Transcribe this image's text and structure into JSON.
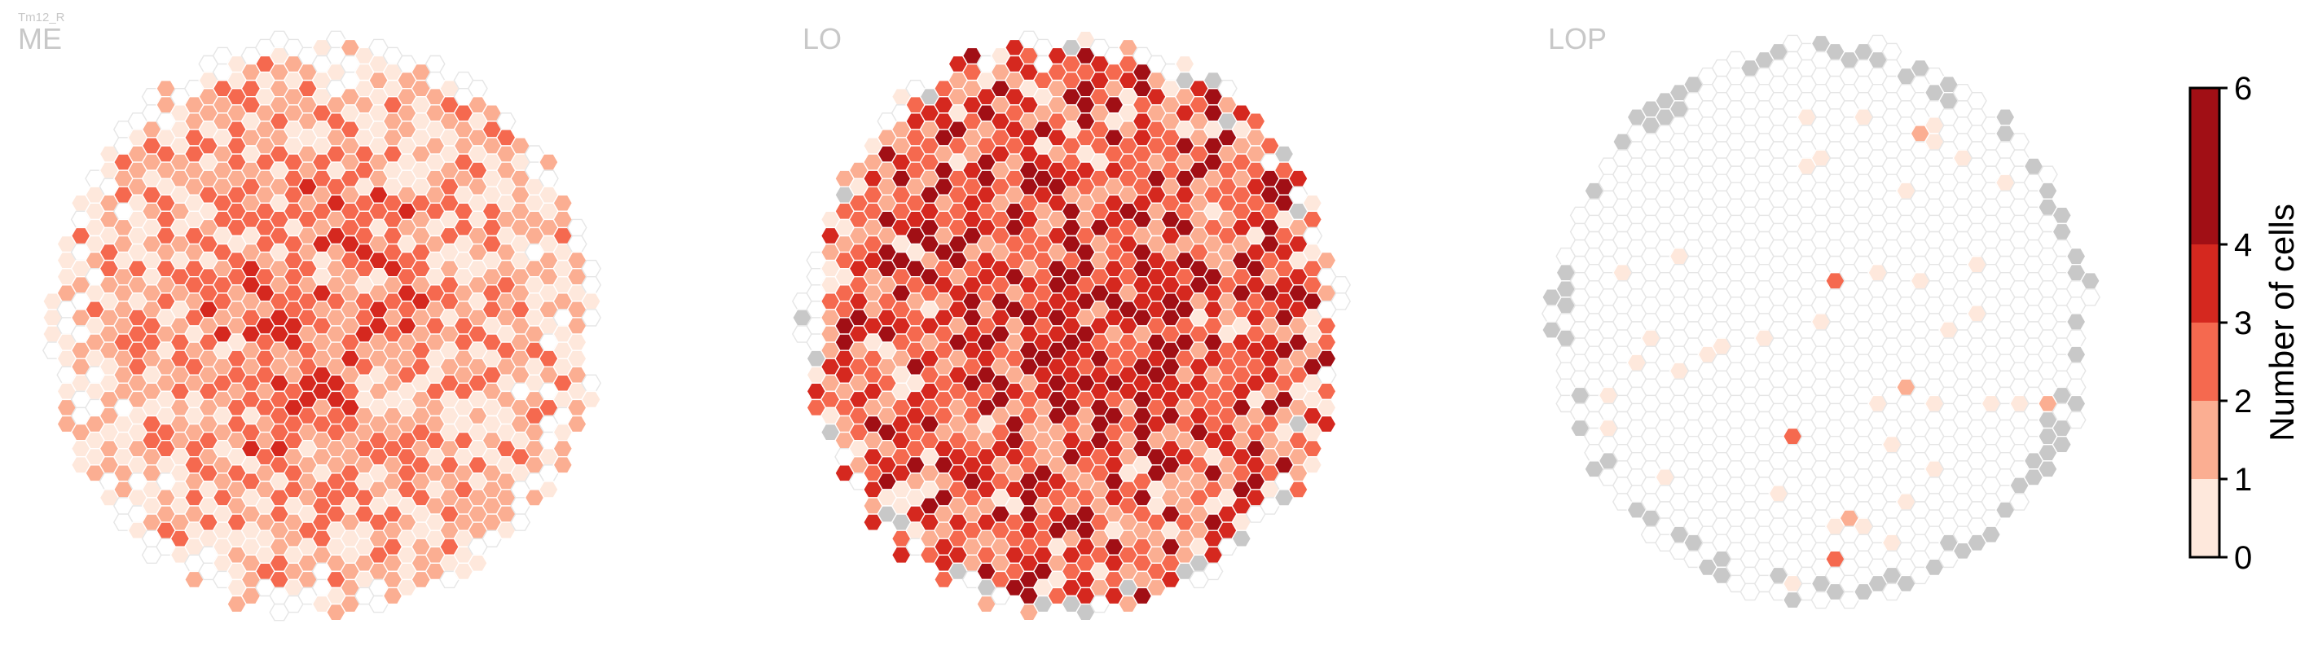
{
  "figure": {
    "cell_type": "Tm12_R",
    "panels": [
      {
        "name": "ME"
      },
      {
        "name": "LO"
      },
      {
        "name": "LOP"
      }
    ]
  },
  "chart_data": {
    "type": "heatmap",
    "description_kind": "hexagonal column map",
    "panels": [
      "ME",
      "LO",
      "LOP"
    ],
    "panel_summary": {
      "ME": {
        "occupied_columns": "most",
        "typical_count_range": [
          1,
          4
        ],
        "max_count": 6
      },
      "LO": {
        "occupied_columns": "most",
        "typical_count_range": [
          2,
          6
        ],
        "max_count": 6
      },
      "LOP": {
        "occupied_columns": "few",
        "typical_count_range": [
          0,
          1
        ],
        "max_count": 3
      }
    },
    "colorbar": {
      "label": "Number of cells",
      "ticks": [
        "0",
        "1",
        "2",
        "3",
        "4",
        "6"
      ],
      "bins": [
        {
          "range": [
            0,
            1
          ],
          "color": "#fee8dc"
        },
        {
          "range": [
            1,
            2
          ],
          "color": "#fbae92"
        },
        {
          "range": [
            2,
            3
          ],
          "color": "#f5694f"
        },
        {
          "range": [
            3,
            4
          ],
          "color": "#d5281f"
        },
        {
          "range": [
            4,
            6
          ],
          "color": "#a10f15"
        }
      ]
    },
    "no_data_color": "#c8c8c8",
    "empty_outline_color": "#e6e6e6"
  }
}
